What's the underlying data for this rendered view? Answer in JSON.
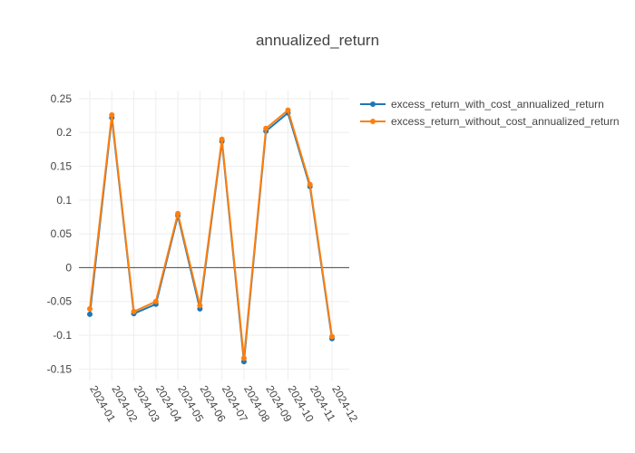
{
  "chart_data": {
    "type": "line",
    "title": "annualized_return",
    "xlabel": "",
    "ylabel": "",
    "categories": [
      "2024-01",
      "2024-02",
      "2024-03",
      "2024-04",
      "2024-05",
      "2024-06",
      "2024-07",
      "2024-08",
      "2024-09",
      "2024-10",
      "2024-11",
      "2024-12"
    ],
    "yticks": [
      0.25,
      0.2,
      0.15,
      0.1,
      0.05,
      0,
      -0.05,
      -0.1,
      -0.15
    ],
    "ylim": [
      -0.167,
      0.262
    ],
    "grid": true,
    "legend_position": "top-right",
    "series": [
      {
        "name": "excess_return_with_cost_annualized_return",
        "color": "#1f77b4",
        "values": [
          -0.069,
          0.222,
          -0.068,
          -0.054,
          0.077,
          -0.061,
          0.187,
          -0.139,
          0.202,
          0.229,
          0.12,
          -0.105
        ]
      },
      {
        "name": "excess_return_without_cost_annualized_return",
        "color": "#ff7f0e",
        "values": [
          -0.061,
          0.226,
          -0.065,
          -0.05,
          0.08,
          -0.056,
          0.19,
          -0.134,
          0.206,
          0.233,
          0.123,
          -0.102
        ]
      }
    ]
  }
}
